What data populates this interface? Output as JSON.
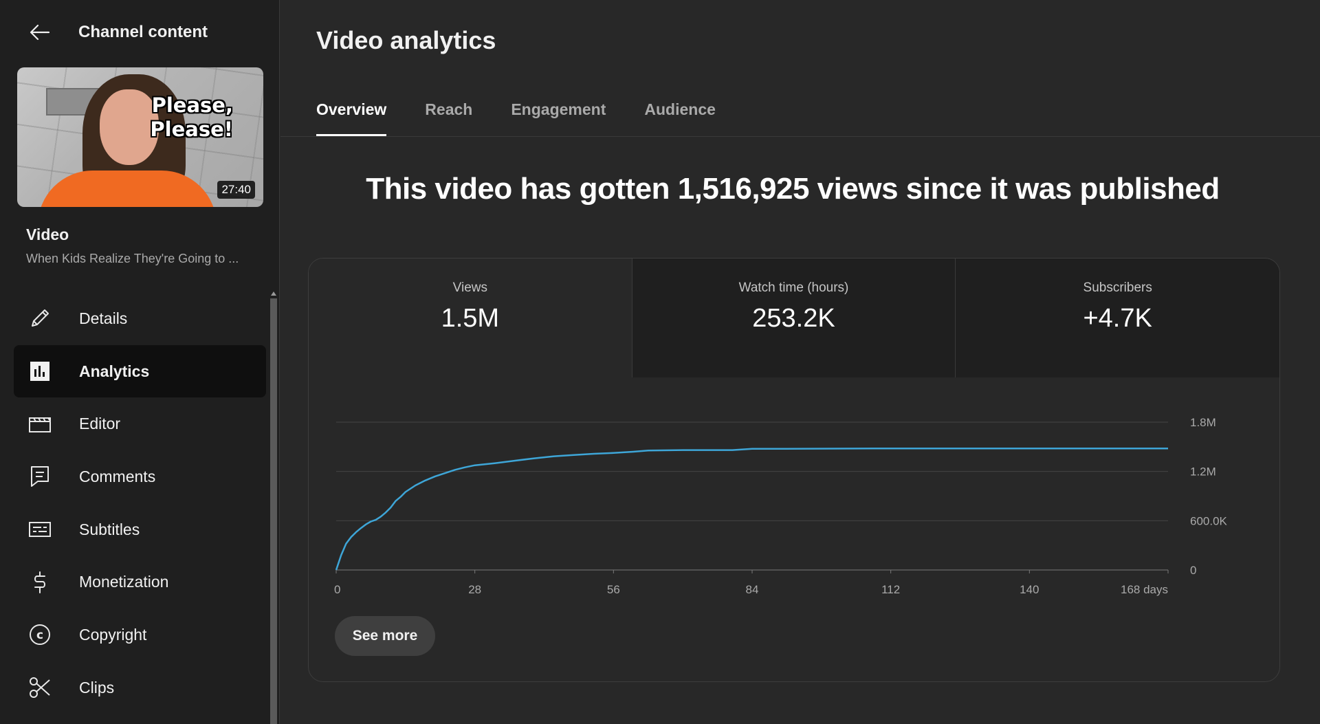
{
  "sidebar": {
    "header_title": "Channel content",
    "thumbnail": {
      "caption": "Please,\nPlease!",
      "duration": "27:40"
    },
    "video_label": "Video",
    "video_title": "When Kids Realize They're Going to ...",
    "items": [
      {
        "label": "Details",
        "icon": "pencil-icon",
        "active": false
      },
      {
        "label": "Analytics",
        "icon": "analytics-icon",
        "active": true
      },
      {
        "label": "Editor",
        "icon": "clapperboard-icon",
        "active": false
      },
      {
        "label": "Comments",
        "icon": "comment-icon",
        "active": false
      },
      {
        "label": "Subtitles",
        "icon": "subtitles-icon",
        "active": false
      },
      {
        "label": "Monetization",
        "icon": "dollar-icon",
        "active": false
      },
      {
        "label": "Copyright",
        "icon": "copyright-icon",
        "active": false
      },
      {
        "label": "Clips",
        "icon": "scissors-icon",
        "active": false
      }
    ]
  },
  "main": {
    "title": "Video analytics",
    "tabs": [
      {
        "label": "Overview",
        "active": true
      },
      {
        "label": "Reach",
        "active": false
      },
      {
        "label": "Engagement",
        "active": false
      },
      {
        "label": "Audience",
        "active": false
      }
    ],
    "headline": "This video has gotten 1,516,925 views since it was published",
    "metrics": [
      {
        "label": "Views",
        "value": "1.5M",
        "active": true
      },
      {
        "label": "Watch time (hours)",
        "value": "253.2K",
        "active": false
      },
      {
        "label": "Subscribers",
        "value": "+4.7K",
        "active": false
      }
    ],
    "see_more_label": "See more"
  },
  "colors": {
    "line": "#3ea6d8",
    "background": "#282828",
    "sidebar": "#1f1f1f"
  },
  "chart_data": {
    "type": "line",
    "xlabel": "",
    "ylabel": "",
    "x_ticks": [
      0,
      28,
      56,
      84,
      112,
      140,
      168
    ],
    "x_tick_labels": [
      "0",
      "28",
      "56",
      "84",
      "112",
      "140",
      "168 days"
    ],
    "y_ticks": [
      0,
      600000,
      1200000,
      1800000
    ],
    "y_tick_labels": [
      "0",
      "600.0K",
      "1.2M",
      "1.8M"
    ],
    "xlim": [
      0,
      168
    ],
    "ylim": [
      0,
      1800000
    ],
    "series": [
      {
        "x": [
          0,
          1,
          2,
          3,
          4,
          5,
          6,
          7,
          8,
          9,
          10,
          11,
          12,
          13,
          14,
          16,
          18,
          20,
          22,
          24,
          26,
          28,
          32,
          36,
          40,
          44,
          48,
          52,
          56,
          60,
          63,
          70,
          80,
          84,
          90,
          100,
          112,
          120,
          130,
          140,
          150,
          160,
          168
        ],
        "y": [
          0,
          180000,
          320000,
          400000,
          460000,
          510000,
          555000,
          590000,
          610000,
          650000,
          700000,
          760000,
          840000,
          890000,
          950000,
          1030000,
          1090000,
          1140000,
          1180000,
          1220000,
          1250000,
          1275000,
          1300000,
          1330000,
          1360000,
          1385000,
          1400000,
          1415000,
          1425000,
          1440000,
          1455000,
          1460000,
          1460000,
          1475000,
          1475000,
          1478000,
          1480000,
          1480000,
          1480000,
          1480000,
          1480000,
          1480000,
          1480000
        ]
      }
    ],
    "grid": true
  }
}
